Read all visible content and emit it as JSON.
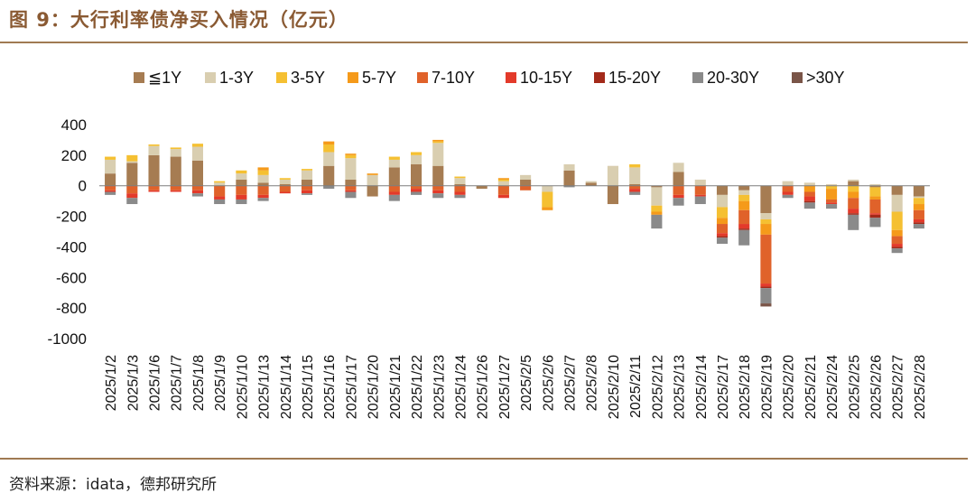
{
  "figure": {
    "title": "图 9：大行利率债净买入情况（亿元）",
    "source": "资料来源：idata，德邦研究所"
  },
  "chart_data": {
    "type": "bar",
    "stacked": true,
    "title": "大行利率债净买入情况（亿元）",
    "xlabel": "",
    "ylabel": "",
    "ylim": [
      -1000,
      400
    ],
    "yticks": [
      400,
      200,
      0,
      -200,
      -400,
      -600,
      -800,
      -1000
    ],
    "grid": false,
    "legend_position": "top",
    "categories": [
      "2025/1/2",
      "2025/1/3",
      "2025/1/6",
      "2025/1/7",
      "2025/1/8",
      "2025/1/9",
      "2025/1/10",
      "2025/1/13",
      "2025/1/14",
      "2025/1/15",
      "2025/1/16",
      "2025/1/17",
      "2025/1/20",
      "2025/1/21",
      "2025/1/22",
      "2025/1/23",
      "2025/1/24",
      "2025/1/26",
      "2025/1/27",
      "2025/2/5",
      "2025/2/6",
      "2025/2/7",
      "2025/2/8",
      "2025/2/10",
      "2025/2/11",
      "2025/2/12",
      "2025/2/13",
      "2025/2/14",
      "2025/2/17",
      "2025/2/18",
      "2025/2/19",
      "2025/2/20",
      "2025/2/21",
      "2025/2/24",
      "2025/2/25",
      "2025/2/26",
      "2025/2/27",
      "2025/2/28"
    ],
    "series": [
      {
        "name": "≦1Y",
        "color": "#a67c52",
        "values": [
          80,
          150,
          200,
          190,
          165,
          0,
          40,
          20,
          10,
          40,
          130,
          40,
          -70,
          120,
          140,
          130,
          10,
          -20,
          0,
          40,
          0,
          100,
          20,
          -120,
          10,
          -10,
          90,
          0,
          -60,
          -30,
          -180,
          0,
          0,
          0,
          30,
          -10,
          -60,
          -70
        ]
      },
      {
        "name": "1-3Y",
        "color": "#d9ceb0",
        "values": [
          90,
          10,
          60,
          50,
          90,
          20,
          40,
          50,
          30,
          60,
          90,
          140,
          70,
          50,
          60,
          150,
          40,
          0,
          30,
          30,
          -40,
          40,
          10,
          130,
          110,
          -120,
          60,
          40,
          -80,
          -30,
          -40,
          30,
          20,
          10,
          10,
          10,
          -110,
          -10
        ]
      },
      {
        "name": "3-5Y",
        "color": "#f5c032",
        "values": [
          20,
          40,
          10,
          10,
          20,
          10,
          20,
          30,
          10,
          10,
          50,
          20,
          0,
          20,
          20,
          10,
          10,
          0,
          10,
          0,
          -100,
          0,
          0,
          0,
          20,
          -40,
          0,
          0,
          -70,
          -40,
          -30,
          0,
          0,
          -20,
          -40,
          -60,
          -120,
          -40
        ]
      },
      {
        "name": "5-7Y",
        "color": "#f59a1a",
        "values": [
          0,
          0,
          0,
          0,
          0,
          0,
          0,
          20,
          0,
          0,
          20,
          10,
          10,
          0,
          0,
          10,
          0,
          0,
          10,
          0,
          -20,
          0,
          0,
          0,
          0,
          -20,
          0,
          0,
          -40,
          -60,
          -70,
          0,
          -40,
          -70,
          -40,
          -20,
          -40,
          -40
        ]
      },
      {
        "name": "7-10Y",
        "color": "#e0622a",
        "values": [
          -30,
          -50,
          -30,
          -30,
          -30,
          -70,
          -60,
          -60,
          -40,
          -30,
          0,
          -30,
          0,
          -40,
          -20,
          -30,
          -40,
          0,
          -60,
          -30,
          0,
          0,
          0,
          0,
          -20,
          0,
          -60,
          -60,
          -60,
          -90,
          -320,
          -40,
          -30,
          -20,
          -70,
          -90,
          -50,
          -60
        ]
      },
      {
        "name": "10-15Y",
        "color": "#e33a2a",
        "values": [
          -10,
          -30,
          -10,
          -10,
          -20,
          -20,
          -30,
          -20,
          -10,
          -20,
          0,
          -10,
          0,
          -20,
          -20,
          -20,
          -20,
          0,
          -20,
          0,
          0,
          0,
          0,
          0,
          -20,
          0,
          -20,
          -10,
          -20,
          -30,
          -20,
          -20,
          -30,
          -10,
          -30,
          -10,
          -20,
          -20
        ]
      },
      {
        "name": "15-20Y",
        "color": "#a32a1a",
        "values": [
          0,
          0,
          0,
          0,
          0,
          0,
          0,
          0,
          0,
          0,
          0,
          0,
          0,
          0,
          0,
          0,
          0,
          0,
          0,
          0,
          0,
          0,
          0,
          0,
          0,
          0,
          0,
          0,
          -10,
          -10,
          -10,
          0,
          -10,
          0,
          -10,
          -20,
          -10,
          -10
        ]
      },
      {
        "name": "20-30Y",
        "color": "#8a8a8a",
        "values": [
          -20,
          -40,
          0,
          0,
          -20,
          -30,
          -30,
          -20,
          0,
          -10,
          -20,
          -40,
          0,
          -40,
          -20,
          -30,
          -20,
          0,
          0,
          0,
          0,
          -10,
          0,
          0,
          -20,
          -90,
          -50,
          -50,
          -40,
          -100,
          -100,
          -20,
          -40,
          -30,
          -100,
          -60,
          -30,
          -30
        ]
      },
      {
        "name": ">30Y",
        "color": "#7a5548",
        "values": [
          0,
          0,
          0,
          0,
          0,
          0,
          0,
          0,
          0,
          0,
          0,
          0,
          0,
          0,
          0,
          0,
          0,
          0,
          0,
          0,
          0,
          0,
          0,
          0,
          0,
          0,
          0,
          0,
          0,
          0,
          -20,
          0,
          0,
          0,
          0,
          0,
          0,
          0
        ]
      }
    ]
  }
}
